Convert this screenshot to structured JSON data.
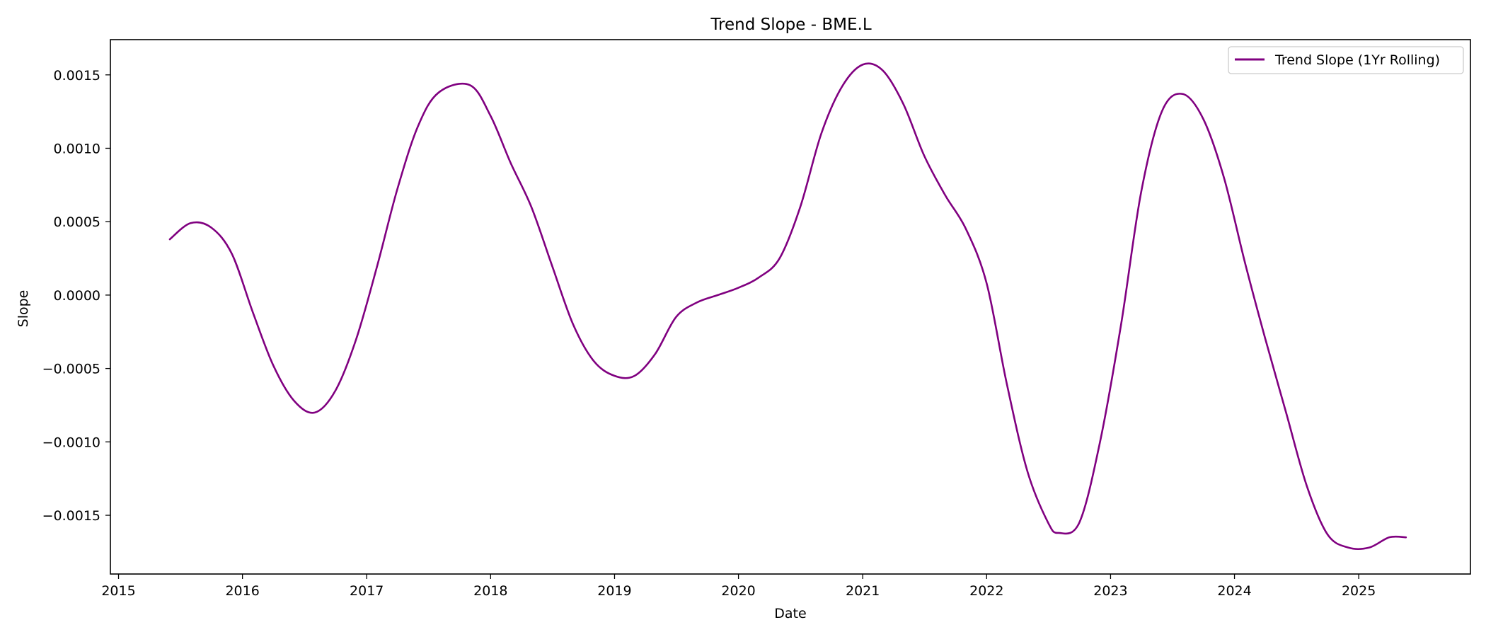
{
  "chart_data": {
    "type": "line",
    "title": "Trend Slope - BME.L",
    "xlabel": "Date",
    "ylabel": "Slope",
    "xlim": [
      "2014-12-08",
      "2025-11-26"
    ],
    "ylim": [
      -0.0019,
      0.00174
    ],
    "x_ticks": [
      "2015",
      "2016",
      "2017",
      "2018",
      "2019",
      "2020",
      "2021",
      "2022",
      "2023",
      "2024",
      "2025"
    ],
    "y_ticks": [
      "0.0015",
      "0.0010",
      "0.0005",
      "0.0000",
      "−0.0005",
      "−0.0010",
      "−0.0015"
    ],
    "grid": false,
    "legend_position": "top-right",
    "series": [
      {
        "name": "Trend Slope (1Yr Rolling)",
        "color": "#800080",
        "x": [
          "2015-06-01",
          "2015-08-01",
          "2015-10-01",
          "2015-12-01",
          "2016-02-01",
          "2016-04-01",
          "2016-06-01",
          "2016-08-01",
          "2016-10-01",
          "2016-12-01",
          "2017-02-01",
          "2017-04-01",
          "2017-06-01",
          "2017-08-01",
          "2017-11-01",
          "2018-01-01",
          "2018-03-01",
          "2018-05-01",
          "2018-07-01",
          "2018-09-01",
          "2018-11-01",
          "2019-01-01",
          "2019-03-01",
          "2019-05-01",
          "2019-07-01",
          "2019-09-01",
          "2019-11-01",
          "2020-01-01",
          "2020-03-01",
          "2020-05-01",
          "2020-07-01",
          "2020-09-01",
          "2020-11-01",
          "2021-01-01",
          "2021-03-01",
          "2021-05-01",
          "2021-07-01",
          "2021-09-01",
          "2021-11-01",
          "2022-01-01",
          "2022-03-01",
          "2022-05-01",
          "2022-07-01",
          "2022-08-01",
          "2022-10-01",
          "2022-12-01",
          "2023-02-01",
          "2023-04-01",
          "2023-06-01",
          "2023-08-01",
          "2023-10-01",
          "2023-12-01",
          "2024-02-01",
          "2024-04-01",
          "2024-06-01",
          "2024-08-01",
          "2024-10-01",
          "2024-12-01",
          "2025-02-01",
          "2025-04-01",
          "2025-05-20"
        ],
        "y": [
          0.00038,
          0.00049,
          0.00046,
          0.00028,
          -0.00012,
          -0.00048,
          -0.00072,
          -0.0008,
          -0.00065,
          -0.0003,
          0.0002,
          0.00072,
          0.00115,
          0.00138,
          0.00143,
          0.00122,
          0.0009,
          0.0006,
          0.0002,
          -0.0002,
          -0.00045,
          -0.00055,
          -0.00055,
          -0.0004,
          -0.00015,
          -5e-05,
          0.0,
          5e-05,
          0.00012,
          0.00025,
          0.0006,
          0.0011,
          0.00142,
          0.00157,
          0.00153,
          0.0013,
          0.00095,
          0.00068,
          0.00045,
          8e-05,
          -0.0006,
          -0.0012,
          -0.00155,
          -0.00162,
          -0.00155,
          -0.001,
          -0.0002,
          0.0007,
          0.00125,
          0.00137,
          0.0012,
          0.0008,
          0.00022,
          -0.0003,
          -0.0008,
          -0.0013,
          -0.00163,
          -0.00172,
          -0.00172,
          -0.00165,
          -0.00165
        ]
      }
    ]
  }
}
